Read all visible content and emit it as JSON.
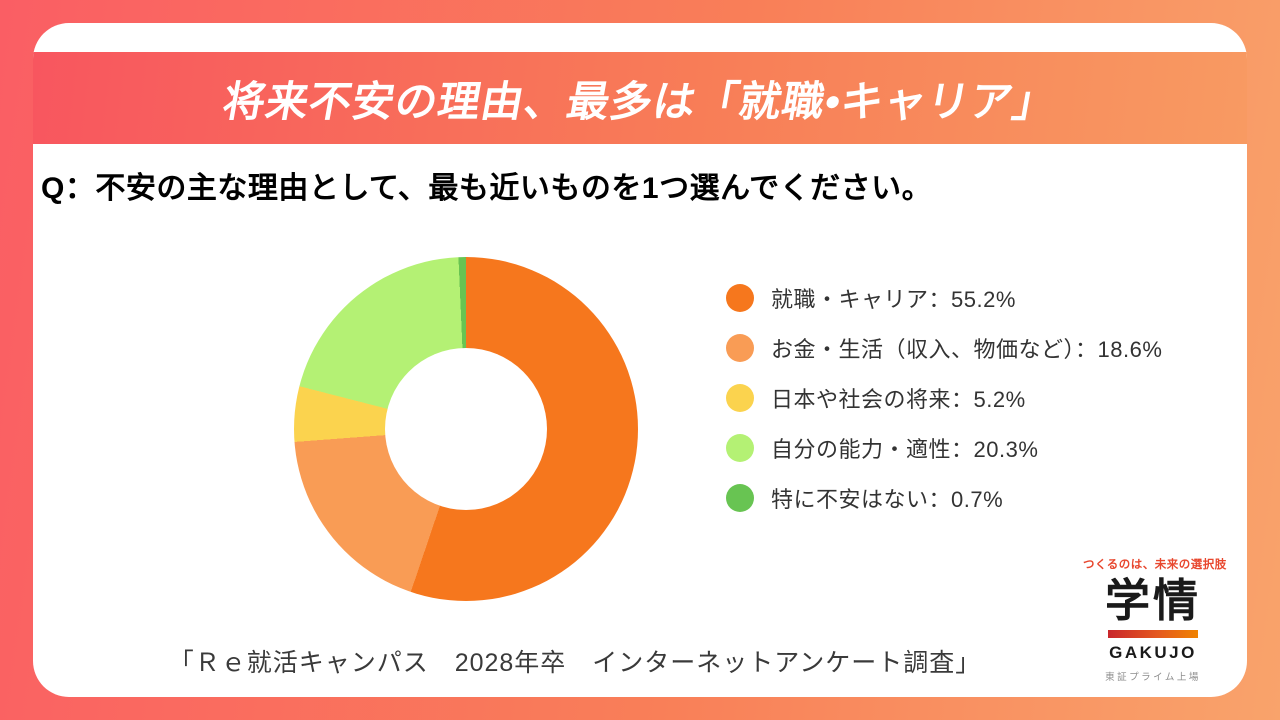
{
  "page": {
    "banner_title": "将来不安の理由、最多は「就職•キャリア」",
    "source": "「Ｒｅ就活キャンパス　2028年卒　インターネットアンケート調査」"
  },
  "chart_data": {
    "type": "pie",
    "subtype": "donut",
    "title": "Q：不安の主な理由として、最も近いものを1つ選んでください。",
    "series": [
      {
        "label": "就職・キャリア",
        "value": 55.2,
        "color": "#f6771d"
      },
      {
        "label": "お金・生活（収入、物価など）",
        "value": 18.6,
        "color": "#f99c55"
      },
      {
        "label": "日本や社会の将来",
        "value": 5.2,
        "color": "#fbd34e"
      },
      {
        "label": "自分の能力・適性",
        "value": 20.3,
        "color": "#b4f174"
      },
      {
        "label": "特に不安はない",
        "value": 0.7,
        "color": "#68c452"
      }
    ],
    "start_angle_deg": 0,
    "direction": "clockwise",
    "inner_radius_ratio": 0.47,
    "legend_position": "right",
    "legend_separator": "：",
    "value_suffix": "%"
  },
  "logo": {
    "tagline": "つくるのは、未来の選択肢",
    "name_kanji": "学情",
    "name_roman": "GAKUJO",
    "listing": "東証プライム上場"
  },
  "theme": {
    "bg_gradient_left": "#fa5e64",
    "bg_gradient_right": "#f9a36b",
    "banner_gradient_left": "#f8565f",
    "banner_gradient_right": "#f89a62",
    "logo_accent": "#e8472e"
  }
}
